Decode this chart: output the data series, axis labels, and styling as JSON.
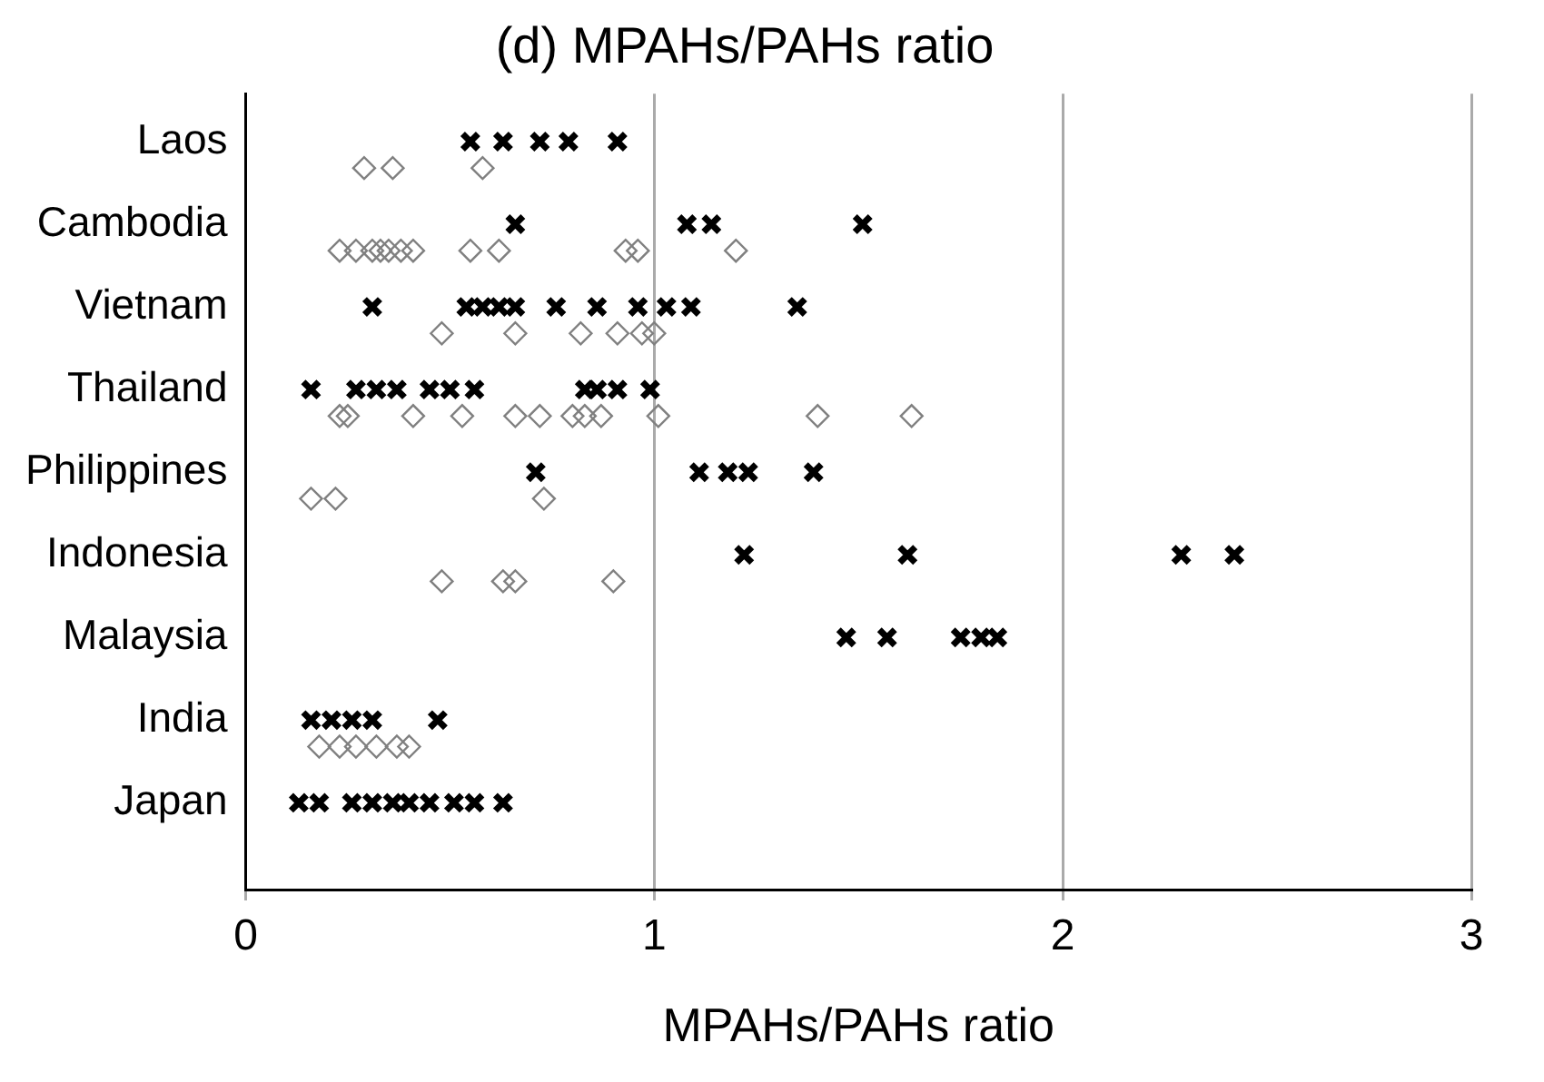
{
  "chart_data": {
    "type": "scatter",
    "title": "(d) MPAHs/PAHs ratio",
    "xlabel": "MPAHs/PAHs ratio",
    "orientation": "horizontal",
    "categories": [
      "Laos",
      "Cambodia",
      "Vietnam",
      "Thailand",
      "Philippines",
      "Indonesia",
      "Malaysia",
      "India",
      "Japan"
    ],
    "xlim": [
      0,
      3
    ],
    "xticks": [
      0,
      1,
      2,
      3
    ],
    "grid": "x",
    "series": [
      {
        "color": "#000000",
        "marker": "cross",
        "x": [
          "Laos",
          "Laos",
          "Laos",
          "Laos",
          "Laos",
          "Cambodia",
          "Cambodia",
          "Cambodia",
          "Cambodia",
          "Vietnam",
          "Vietnam",
          "Vietnam",
          "Vietnam",
          "Vietnam",
          "Vietnam",
          "Vietnam",
          "Vietnam",
          "Vietnam",
          "Vietnam",
          "Vietnam",
          "Thailand",
          "Thailand",
          "Thailand",
          "Thailand",
          "Thailand",
          "Thailand",
          "Thailand",
          "Thailand",
          "Thailand",
          "Thailand",
          "Thailand",
          "Philippines",
          "Philippines",
          "Philippines",
          "Philippines",
          "Philippines",
          "Indonesia",
          "Indonesia",
          "Indonesia",
          "Indonesia",
          "Malaysia",
          "Malaysia",
          "Malaysia",
          "Malaysia",
          "Malaysia",
          "India",
          "India",
          "India",
          "India",
          "India",
          "Japan",
          "Japan",
          "Japan",
          "Japan",
          "Japan",
          "Japan",
          "Japan",
          "Japan",
          "Japan",
          "Japan"
        ],
        "values": [
          0.55,
          0.63,
          0.72,
          0.79,
          0.91,
          0.66,
          1.08,
          1.14,
          1.51,
          0.31,
          0.54,
          0.58,
          0.62,
          0.66,
          0.76,
          0.86,
          0.96,
          1.03,
          1.09,
          1.35,
          0.16,
          0.27,
          0.32,
          0.37,
          0.45,
          0.5,
          0.56,
          0.83,
          0.86,
          0.91,
          0.99,
          0.71,
          1.11,
          1.18,
          1.23,
          1.39,
          1.22,
          1.62,
          2.29,
          2.42,
          1.47,
          1.57,
          1.75,
          1.8,
          1.84,
          0.16,
          0.21,
          0.26,
          0.31,
          0.47,
          0.13,
          0.18,
          0.26,
          0.31,
          0.36,
          0.4,
          0.45,
          0.51,
          0.56,
          0.63
        ]
      },
      {
        "color": "#808080",
        "marker": "diamond",
        "x": [
          "Laos",
          "Laos",
          "Laos",
          "Cambodia",
          "Cambodia",
          "Cambodia",
          "Cambodia",
          "Cambodia",
          "Cambodia",
          "Cambodia",
          "Cambodia",
          "Cambodia",
          "Cambodia",
          "Cambodia",
          "Cambodia",
          "Vietnam",
          "Vietnam",
          "Vietnam",
          "Vietnam",
          "Vietnam",
          "Vietnam",
          "Thailand",
          "Thailand",
          "Thailand",
          "Thailand",
          "Thailand",
          "Thailand",
          "Thailand",
          "Thailand",
          "Thailand",
          "Thailand",
          "Thailand",
          "Thailand",
          "Philippines",
          "Philippines",
          "Philippines",
          "Indonesia",
          "Indonesia",
          "Indonesia",
          "Indonesia",
          "India",
          "India",
          "India",
          "India",
          "India",
          "India"
        ],
        "values": [
          0.29,
          0.36,
          0.58,
          0.23,
          0.27,
          0.31,
          0.33,
          0.35,
          0.38,
          0.41,
          0.55,
          0.62,
          0.93,
          0.96,
          1.2,
          0.48,
          0.66,
          0.82,
          0.91,
          0.97,
          1.0,
          0.23,
          0.25,
          0.41,
          0.53,
          0.66,
          0.72,
          0.8,
          0.83,
          0.87,
          1.01,
          1.4,
          1.63,
          0.16,
          0.22,
          0.73,
          0.48,
          0.63,
          0.66,
          0.9,
          0.18,
          0.23,
          0.27,
          0.32,
          0.37,
          0.4
        ]
      }
    ]
  }
}
